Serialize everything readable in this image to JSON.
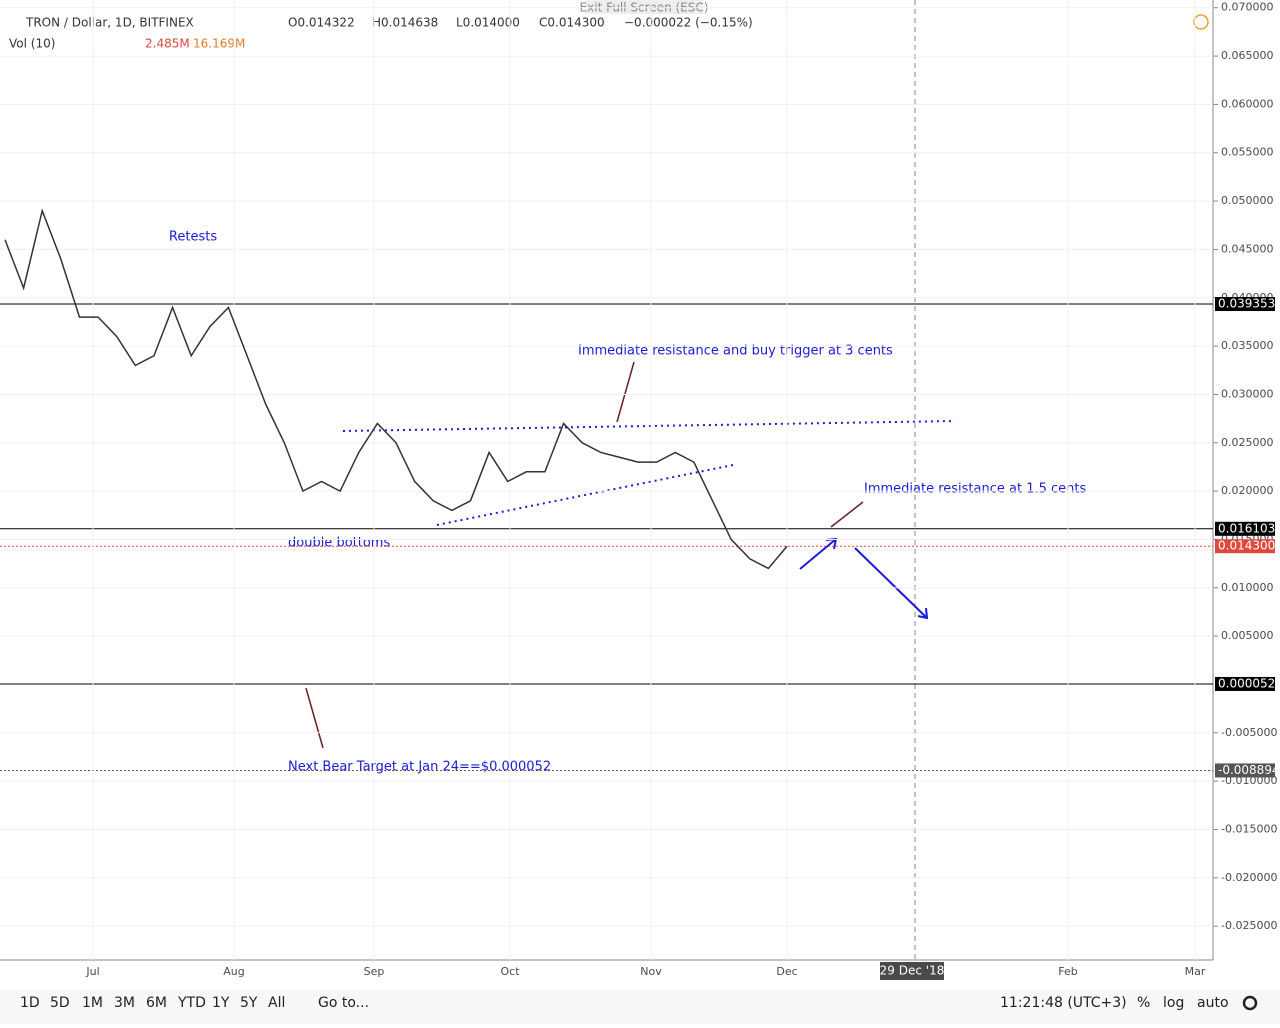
{
  "header": {
    "symbol": "TRON / Dollar, 1D, BITFINEX",
    "open": "O0.014322",
    "high": "H0.014638",
    "low": "L0.014000",
    "close": "C0.014300",
    "change": "−0.000022 (−0.15%)",
    "volume_label": "Vol (10)",
    "volume_value": "2.485M",
    "volume_ma": "16.169M",
    "exit": "Exit Full Screen (ESC)"
  },
  "chart_data": {
    "type": "line",
    "color": "#333333",
    "values": [
      0.046,
      0.041,
      0.049,
      0.044,
      0.038,
      0.038,
      0.036,
      0.033,
      0.034,
      0.039,
      0.034,
      0.037,
      0.039,
      0.034,
      0.029,
      0.025,
      0.02,
      0.021,
      0.02,
      0.024,
      0.027,
      0.025,
      0.021,
      0.019,
      0.018,
      0.019,
      0.024,
      0.021,
      0.022,
      0.022,
      0.027,
      0.025,
      0.024,
      0.0235,
      0.023,
      0.023,
      0.024,
      0.023,
      0.019,
      0.015,
      0.013,
      0.012,
      0.0143
    ],
    "ylim": [
      -0.0285,
      0.0708
    ],
    "yticks": [
      {
        "value": 0.07,
        "label": "0.070000"
      },
      {
        "value": 0.065,
        "label": "0.065000"
      },
      {
        "value": 0.06,
        "label": "0.060000"
      },
      {
        "value": 0.055,
        "label": "0.055000"
      },
      {
        "value": 0.05,
        "label": "0.050000"
      },
      {
        "value": 0.045,
        "label": "0.045000"
      },
      {
        "value": 0.04,
        "label": "0.040000"
      },
      {
        "value": 0.035,
        "label": "0.035000"
      },
      {
        "value": 0.03,
        "label": "0.030000"
      },
      {
        "value": 0.025,
        "label": "0.025000"
      },
      {
        "value": 0.02,
        "label": "0.020000"
      },
      {
        "value": 0.015,
        "label": "0.015000"
      },
      {
        "value": 0.01,
        "label": "0.010000"
      },
      {
        "value": 0.005,
        "label": "0.005000"
      },
      {
        "value": -0.005,
        "label": "-0.005000"
      },
      {
        "value": -0.01,
        "label": "-0.010000"
      },
      {
        "value": -0.015,
        "label": "-0.015000"
      },
      {
        "value": -0.02,
        "label": "-0.020000"
      },
      {
        "value": -0.025,
        "label": "-0.025000"
      }
    ],
    "levels": [
      {
        "value": 0.039353,
        "label": "0.039353",
        "color": "#000000"
      },
      {
        "value": 0.016103,
        "label": "0.016103",
        "color": "#000000"
      },
      {
        "value": 0.0143,
        "label": "0.014300",
        "color": "#e0483b"
      },
      {
        "value": 5.2e-05,
        "label": "0.000052",
        "color": "#000000"
      },
      {
        "value": -0.008894,
        "label": "-0.008894",
        "color": "#555555"
      }
    ],
    "months": [
      "Jul",
      "Aug",
      "Sep",
      "Oct",
      "Nov",
      "Dec",
      "Feb",
      "Mar"
    ],
    "cursor_date": "29 Dec '18"
  },
  "annotations": {
    "retests": "Retests",
    "resistance_3": "Immediate resistance and buy trigger at 3 cents",
    "resistance_15": "Immediate resistance at 1.5 cents",
    "double_bottoms": "double bottoms",
    "bear_target": "Next Bear Target at Jan 24==$0.000052"
  },
  "toolbar": {
    "ranges": [
      "1D",
      "5D",
      "1M",
      "3M",
      "6M",
      "YTD",
      "1Y",
      "5Y",
      "All"
    ],
    "goto": "Go to...",
    "time": "11:21:48 (UTC+3)",
    "percent": "%",
    "log": "log",
    "auto": "auto"
  }
}
